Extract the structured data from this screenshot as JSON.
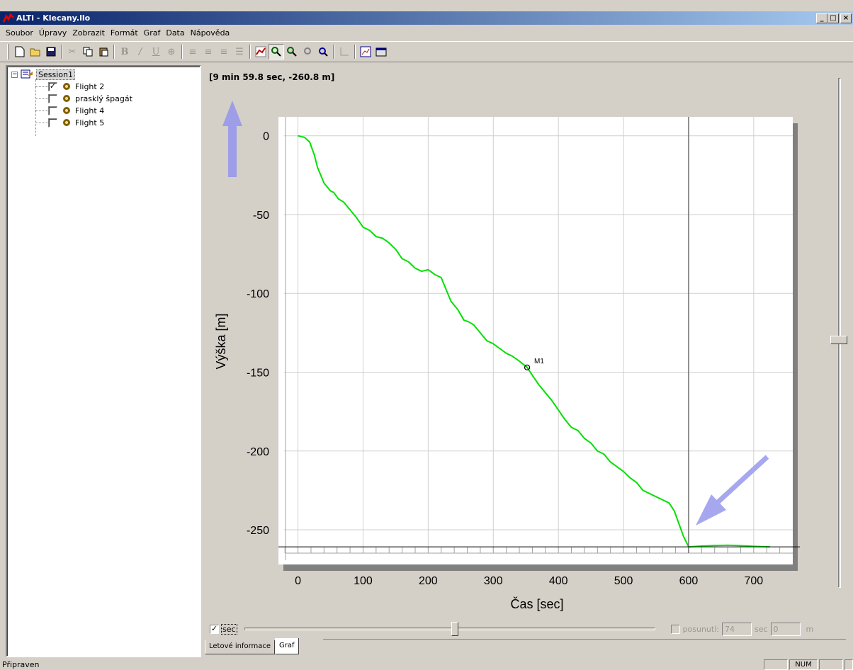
{
  "window": {
    "title": "ALTi - Klecany.llo",
    "minimize": "_",
    "maximize": "□",
    "close": "×"
  },
  "menu": [
    "Soubor",
    "Úpravy",
    "Zobrazit",
    "Formát",
    "Graf",
    "Data",
    "Nápověda"
  ],
  "toolbar": {
    "bold": "B",
    "italic": "/",
    "underline": "U"
  },
  "tree": {
    "session": "Session1",
    "expander": "−",
    "items": [
      {
        "label": "Flight 2",
        "checked": "✓"
      },
      {
        "label": "prasklý špagát",
        "checked": ""
      },
      {
        "label": "Flight 4",
        "checked": ""
      },
      {
        "label": "Flight 5",
        "checked": ""
      }
    ]
  },
  "readout": "[9 min 59.8 sec, -260.8 m]",
  "chart_data": {
    "type": "line",
    "xlabel": "Čas [sec]",
    "ylabel": "Výška [m]",
    "xlim": [
      -30,
      760
    ],
    "ylim": [
      -272,
      12
    ],
    "x_ticks": [
      0,
      100,
      200,
      300,
      400,
      500,
      600,
      700
    ],
    "y_ticks": [
      0,
      -50,
      -100,
      -150,
      -200,
      -250
    ],
    "grid": true,
    "cursor": {
      "x": 600,
      "y": -260.8
    },
    "marker": {
      "label": "M1",
      "x": 352,
      "y": -147
    },
    "series": [
      {
        "color": "#00e000",
        "x": [
          0,
          10,
          18,
          25,
          30,
          40,
          50,
          55,
          62,
          70,
          80,
          90,
          95,
          100,
          110,
          120,
          130,
          140,
          150,
          160,
          170,
          180,
          190,
          200,
          210,
          220,
          225,
          235,
          245,
          255,
          262,
          270,
          280,
          290,
          300,
          310,
          320,
          330,
          340,
          352,
          360,
          370,
          380,
          390,
          400,
          410,
          420,
          430,
          440,
          450,
          460,
          470,
          480,
          490,
          500,
          510,
          520,
          530,
          540,
          550,
          560,
          570,
          578,
          585,
          592,
          600,
          620,
          640,
          660,
          675,
          700,
          725
        ],
        "y": [
          0,
          -1,
          -4,
          -12,
          -20,
          -30,
          -35,
          -36,
          -40,
          -42,
          -47,
          -52,
          -55,
          -58,
          -60,
          -64,
          -65,
          -68,
          -72,
          -78,
          -80,
          -84,
          -86,
          -85,
          -88,
          -90,
          -95,
          -105,
          -110,
          -117,
          -118,
          -120,
          -125,
          -130,
          -132,
          -135,
          -138,
          -140,
          -143,
          -147,
          -152,
          -158,
          -163,
          -168,
          -174,
          -180,
          -185,
          -187,
          -192,
          -195,
          -200,
          -202,
          -207,
          -210,
          -213,
          -217,
          -220,
          -225,
          -227,
          -229,
          -231,
          -233,
          -238,
          -246,
          -254,
          -260.8,
          -260.3,
          -260,
          -259.8,
          -260,
          -260.5,
          -260.8
        ]
      }
    ]
  },
  "controls": {
    "sec_checked": "✓",
    "sec_label": "sec",
    "offset_label": "posunutí:",
    "offset_value": "74",
    "sec_unit": "sec",
    "meters_value": "0",
    "meters_unit": "m"
  },
  "tabs": [
    "Letové informace",
    "Graf"
  ],
  "status": {
    "text": "Připraven",
    "num": "NUM"
  }
}
